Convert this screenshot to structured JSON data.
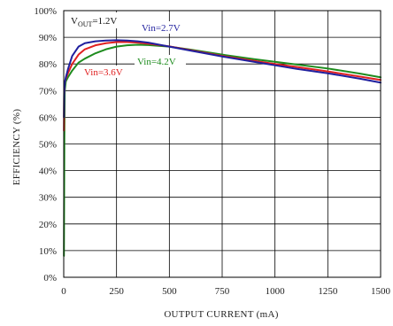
{
  "chart_data": {
    "type": "line",
    "title": "",
    "xlabel": "OUTPUT CURRENT (mA)",
    "ylabel": "EFFICIENCY (%)",
    "xlim": [
      0,
      1500
    ],
    "ylim": [
      0,
      100
    ],
    "xticks": [
      "0",
      "250",
      "500",
      "750",
      "1000",
      "1250",
      "1500"
    ],
    "yticks": [
      "0%",
      "10%",
      "20%",
      "30%",
      "40%",
      "50%",
      "60%",
      "70%",
      "80%",
      "90%",
      "100%"
    ],
    "grid": true,
    "condition_label": {
      "main": "V",
      "sub": "OUT",
      "rest": "=1.2V"
    },
    "series": [
      {
        "name": "Vin=2.7V",
        "color": "#1f1f9e",
        "x": [
          1,
          2,
          5,
          10,
          20,
          40,
          70,
          100,
          150,
          200,
          250,
          300,
          350,
          400,
          500,
          600,
          750,
          900,
          1000,
          1100,
          1250,
          1400,
          1500
        ],
        "y": [
          60,
          69,
          73,
          75,
          78,
          83,
          86.5,
          87.8,
          88.5,
          88.8,
          88.9,
          88.8,
          88.5,
          88,
          86.5,
          85,
          82.8,
          80.8,
          79.5,
          78.2,
          76.5,
          74.5,
          73
        ]
      },
      {
        "name": "Vin=3.6V",
        "color": "#e02020",
        "x": [
          1,
          2,
          5,
          10,
          20,
          40,
          70,
          100,
          150,
          200,
          250,
          300,
          350,
          400,
          500,
          600,
          750,
          900,
          1000,
          1100,
          1250,
          1400,
          1500
        ],
        "y": [
          55,
          68,
          73,
          74.5,
          76.5,
          80,
          83.5,
          85.5,
          87,
          87.8,
          88.2,
          88.2,
          88,
          87.6,
          86.6,
          85.2,
          83,
          81.2,
          80,
          78.9,
          77.2,
          75.3,
          74
        ]
      },
      {
        "name": "Vin=4.2V",
        "color": "#1e8c1e",
        "x": [
          1,
          2,
          3,
          5,
          10,
          20,
          40,
          70,
          100,
          150,
          200,
          250,
          300,
          350,
          400,
          500,
          600,
          750,
          900,
          1000,
          1100,
          1250,
          1400,
          1500
        ],
        "y": [
          8,
          30,
          52,
          70,
          73.5,
          75,
          77.5,
          80.5,
          82,
          84,
          85.5,
          86.5,
          87,
          87.2,
          87.1,
          86.5,
          85.4,
          83.5,
          81.8,
          80.8,
          79.8,
          78.3,
          76.4,
          75
        ]
      }
    ],
    "annotations": [
      "Vin=2.7V",
      "Vin=3.6V",
      "Vin=4.2V"
    ]
  }
}
